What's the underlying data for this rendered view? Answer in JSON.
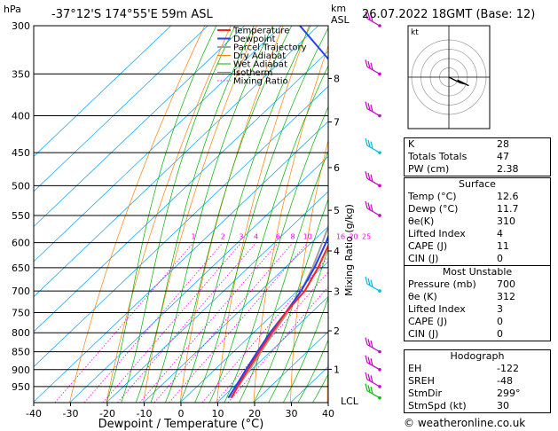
{
  "header": {
    "hpa_unit": "hPa",
    "location": "-37°12'S  174°55'E  59m  ASL",
    "km_label": "km",
    "asl_label": "ASL",
    "datetime": "26.07.2022  18GMT  (Base: 12)"
  },
  "axis": {
    "xlabel": "Dewpoint / Temperature (°C)",
    "mixing_ratio_label": "Mixing Ratio (g/kg)",
    "lcl_label": "LCL",
    "hodo_unit": "kt"
  },
  "legend": [
    "Temperature",
    "Dewpoint",
    "Parcel Trajectory",
    "Dry Adiabat",
    "Wet Adiabat",
    "Isotherm",
    "Mixing Ratio"
  ],
  "colors": {
    "temperature": "#ff2020",
    "dewpoint": "#2040ff",
    "parcel": "#a0a0a0",
    "dry_adiabat": "#ff8000",
    "wet_adiabat": "#00b000",
    "isotherm": "#00a0ff",
    "mixing_ratio": "#ff00ff",
    "wind_barb_upper": "#cc00cc",
    "wind_barb_mid": "#00bbdd",
    "wind_barb_low": "#00c000"
  },
  "chart_data": {
    "type": "skewt",
    "x_ticks": [
      -40,
      -30,
      -20,
      -10,
      0,
      10,
      20,
      30,
      40
    ],
    "pressure_ticks": [
      300,
      350,
      400,
      450,
      500,
      550,
      600,
      650,
      700,
      750,
      800,
      850,
      900,
      950
    ],
    "pressure_range": [
      300,
      1000
    ],
    "km_ticks": [
      {
        "label": "8",
        "p": 355
      },
      {
        "label": "7",
        "p": 408
      },
      {
        "label": "6",
        "p": 472
      },
      {
        "label": "5",
        "p": 541
      },
      {
        "label": "4",
        "p": 616
      },
      {
        "label": "3",
        "p": 701
      },
      {
        "label": "2",
        "p": 795
      },
      {
        "label": "1",
        "p": 899
      }
    ],
    "lcl_pressure": 990,
    "mixing_ratio_values": [
      "1",
      "2",
      "3",
      "4",
      "6",
      "8",
      "10",
      "16",
      "20",
      "25"
    ],
    "temperature": [
      {
        "p": 300,
        "t": -32
      },
      {
        "p": 320,
        "t": -37.5
      },
      {
        "p": 350,
        "t": -36
      },
      {
        "p": 400,
        "t": -29
      },
      {
        "p": 450,
        "t": -22
      },
      {
        "p": 500,
        "t": -16
      },
      {
        "p": 550,
        "t": -9
      },
      {
        "p": 600,
        "t": -5
      },
      {
        "p": 650,
        "t": -1
      },
      {
        "p": 700,
        "t": 2
      },
      {
        "p": 750,
        "t": 3
      },
      {
        "p": 800,
        "t": 5
      },
      {
        "p": 850,
        "t": 7
      },
      {
        "p": 900,
        "t": 9
      },
      {
        "p": 950,
        "t": 11
      },
      {
        "p": 985,
        "t": 12.6
      }
    ],
    "dewpoint": [
      {
        "p": 300,
        "t": -75
      },
      {
        "p": 350,
        "t": -50
      },
      {
        "p": 400,
        "t": -33
      },
      {
        "p": 450,
        "t": -25
      },
      {
        "p": 505,
        "t": -20
      },
      {
        "p": 520,
        "t": -14
      },
      {
        "p": 550,
        "t": -11
      },
      {
        "p": 600,
        "t": -6
      },
      {
        "p": 650,
        "t": -2
      },
      {
        "p": 700,
        "t": 1
      },
      {
        "p": 750,
        "t": 3
      },
      {
        "p": 800,
        "t": 4.5
      },
      {
        "p": 850,
        "t": 6.5
      },
      {
        "p": 900,
        "t": 8.5
      },
      {
        "p": 950,
        "t": 10.5
      },
      {
        "p": 985,
        "t": 11.7
      }
    ],
    "parcel": [
      {
        "p": 300,
        "t": -43
      },
      {
        "p": 350,
        "t": -37
      },
      {
        "p": 400,
        "t": -31
      },
      {
        "p": 450,
        "t": -24
      },
      {
        "p": 500,
        "t": -18
      },
      {
        "p": 550,
        "t": -12
      },
      {
        "p": 600,
        "t": -7
      },
      {
        "p": 650,
        "t": -2.5
      },
      {
        "p": 700,
        "t": 1
      },
      {
        "p": 750,
        "t": 3.5
      },
      {
        "p": 800,
        "t": 5.5
      },
      {
        "p": 850,
        "t": 7.5
      },
      {
        "p": 900,
        "t": 9.5
      },
      {
        "p": 950,
        "t": 11.2
      },
      {
        "p": 985,
        "t": 12.3
      }
    ],
    "hodograph_rings": [
      10,
      20,
      30,
      40
    ],
    "hodograph_points": [
      [
        0,
        0
      ],
      [
        4,
        -2
      ],
      [
        8,
        -4
      ],
      [
        12,
        -5
      ],
      [
        14,
        -6
      ],
      [
        10,
        -4
      ],
      [
        6,
        -2
      ]
    ],
    "wind_barbs": [
      {
        "p": 300,
        "color": "upper"
      },
      {
        "p": 350,
        "color": "upper"
      },
      {
        "p": 400,
        "color": "upper"
      },
      {
        "p": 450,
        "color": "mid"
      },
      {
        "p": 500,
        "color": "upper"
      },
      {
        "p": 550,
        "color": "upper"
      },
      {
        "p": 700,
        "color": "mid"
      },
      {
        "p": 850,
        "color": "upper"
      },
      {
        "p": 900,
        "color": "upper"
      },
      {
        "p": 950,
        "color": "upper"
      },
      {
        "p": 985,
        "color": "low"
      }
    ]
  },
  "indices": {
    "top": [
      {
        "k": "K",
        "v": "28"
      },
      {
        "k": "Totals Totals",
        "v": "47"
      },
      {
        "k": "PW (cm)",
        "v": "2.38"
      }
    ],
    "surface_title": "Surface",
    "surface": [
      {
        "k": "Temp (°C)",
        "v": "12.6"
      },
      {
        "k": "Dewp (°C)",
        "v": "11.7"
      },
      {
        "k": "θe(K)",
        "v": "310"
      },
      {
        "k": "Lifted Index",
        "v": "4"
      },
      {
        "k": "CAPE (J)",
        "v": "11"
      },
      {
        "k": "CIN (J)",
        "v": "0"
      }
    ],
    "mu_title": "Most Unstable",
    "mu": [
      {
        "k": "Pressure (mb)",
        "v": "700"
      },
      {
        "k": "θe (K)",
        "v": "312"
      },
      {
        "k": "Lifted Index",
        "v": "3"
      },
      {
        "k": "CAPE (J)",
        "v": "0"
      },
      {
        "k": "CIN (J)",
        "v": "0"
      }
    ],
    "hodo_title": "Hodograph",
    "hodo": [
      {
        "k": "EH",
        "v": "-122"
      },
      {
        "k": "SREH",
        "v": "-48"
      },
      {
        "k": "StmDir",
        "v": "299°"
      },
      {
        "k": "StmSpd (kt)",
        "v": "30"
      }
    ]
  },
  "copyright": "© weatheronline.co.uk"
}
